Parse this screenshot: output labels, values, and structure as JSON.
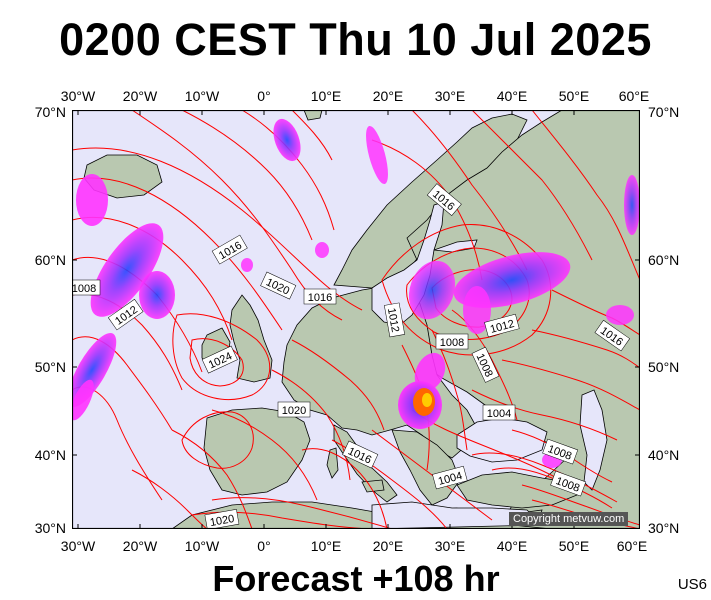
{
  "title": "0200 CEST Thu 10 Jul 2025",
  "footer": "Forecast +108 hr",
  "code": "US6",
  "copyright": "Copyright metvuw.com",
  "lon_labels": [
    "30°W",
    "20°W",
    "10°W",
    "0°",
    "10°E",
    "20°E",
    "30°E",
    "40°E",
    "50°E",
    "60°E"
  ],
  "lon_values": [
    -30,
    -20,
    -10,
    0,
    10,
    20,
    30,
    40,
    50,
    60
  ],
  "lat_labels": [
    "70°N",
    "60°N",
    "50°N",
    "40°N",
    "30°N"
  ],
  "lat_values": [
    70,
    60,
    50,
    40,
    30
  ],
  "isobar_labels": [
    "1016",
    "1016",
    "1008",
    "1012",
    "1020",
    "1016",
    "1024",
    "1012",
    "1008",
    "1012",
    "1008",
    "1020",
    "1004",
    "1016",
    "1016",
    "1008",
    "1004",
    "1008",
    "1020"
  ],
  "colors": {
    "ocean": "#e6e6fa",
    "land": "#b9c8b0",
    "isobar": "#ff0000",
    "coast": "#000000",
    "rain_light": "#ff33ff",
    "rain_mid": "#9933ff",
    "rain_heavy": "#2244ff",
    "rain_extreme": "#ff6600"
  }
}
